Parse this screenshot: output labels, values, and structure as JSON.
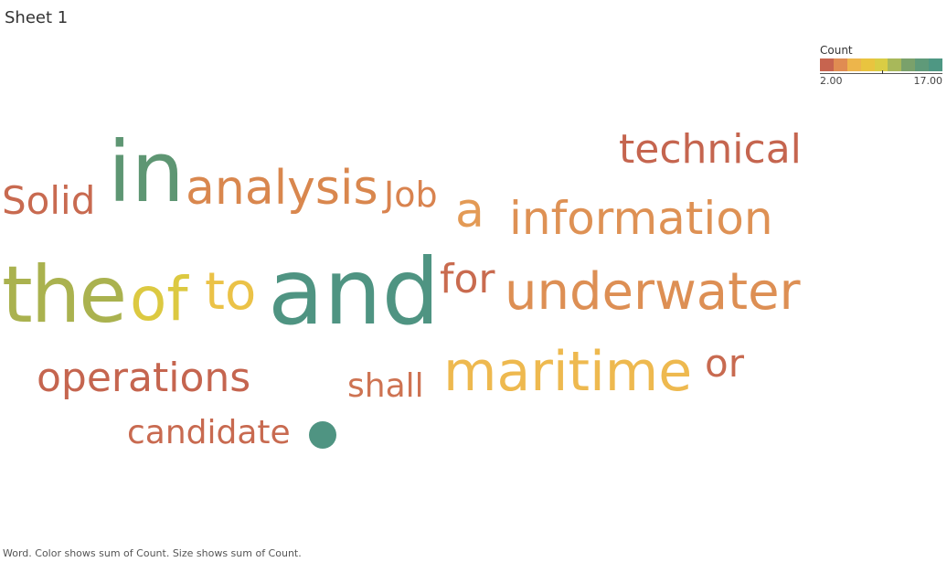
{
  "sheet": {
    "title": "Sheet 1"
  },
  "legend": {
    "title": "Count",
    "min_label": "2.00",
    "max_label": "17.00",
    "colors": [
      "#c7644f",
      "#e08c52",
      "#edb54b",
      "#e9c43f",
      "#d9cd44",
      "#a8b85a",
      "#7aa16b",
      "#5f9a79",
      "#4e9783"
    ]
  },
  "chart_data": {
    "type": "wordcloud",
    "encoding": "Color shows sum of Count. Size shows sum of Count.",
    "count_range": [
      2,
      17
    ],
    "words": [
      {
        "text": "and",
        "count": 17,
        "color": "#4f9482"
      },
      {
        "text": "in",
        "count": 14,
        "color": "#5e9673"
      },
      {
        "text": "the",
        "count": 11,
        "color": "#aab24f"
      },
      {
        "text": "of",
        "count": 9,
        "color": "#dcc941"
      },
      {
        "text": "to",
        "count": 7,
        "color": "#ebc247"
      },
      {
        "text": "underwater",
        "count": 6,
        "color": "#dd8f54"
      },
      {
        "text": "maritime",
        "count": 6,
        "color": "#eeb94f"
      },
      {
        "text": "analysis",
        "count": 5,
        "color": "#d9874e"
      },
      {
        "text": "information",
        "count": 5,
        "color": "#de9154"
      },
      {
        "text": "technical",
        "count": 4,
        "color": "#c5654f"
      },
      {
        "text": "operations",
        "count": 4,
        "color": "#c5654f"
      },
      {
        "text": "a",
        "count": 4,
        "color": "#e39a55"
      },
      {
        "text": "for",
        "count": 4,
        "color": "#c96b4f"
      },
      {
        "text": "Solid",
        "count": 3,
        "color": "#c86a50"
      },
      {
        "text": "Job",
        "count": 3,
        "color": "#d9834f"
      },
      {
        "text": "or",
        "count": 3,
        "color": "#c86a50"
      },
      {
        "text": "candidate",
        "count": 3,
        "color": "#c86a50"
      },
      {
        "text": "shall",
        "count": 3,
        "color": "#ce7352"
      },
      {
        "text": "●",
        "count": 17,
        "color": "#4f9482",
        "shape": "dot"
      }
    ]
  },
  "footer": {
    "caption": "Word.  Color shows sum of Count.  Size shows sum of Count."
  }
}
